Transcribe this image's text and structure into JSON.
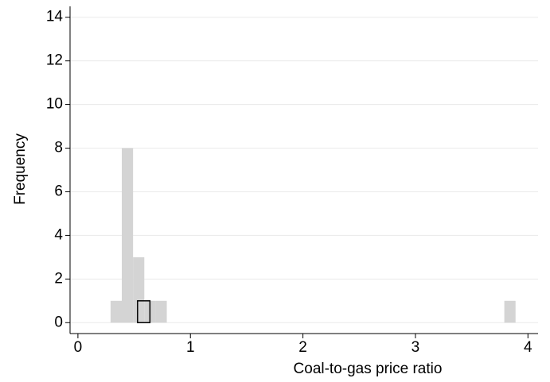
{
  "chart_data": {
    "type": "histogram",
    "x_label": "Coal-to-gas price ratio",
    "y_label": "Frequency",
    "series": [
      {
        "color": "#d4d4d4",
        "bins": [
          0.29,
          0.39,
          0.49,
          0.59,
          0.69,
          0.79,
          0.89,
          0.99,
          1.09,
          1.19,
          1.29,
          1.39,
          1.49,
          1.59,
          1.69,
          1.79,
          1.89,
          1.99,
          2.09,
          2.19,
          2.29,
          2.39,
          2.49,
          2.59,
          2.69,
          2.79,
          2.89,
          2.99,
          3.09,
          3.19,
          3.29,
          3.39,
          3.49,
          3.59,
          3.69,
          3.79,
          3.89
        ],
        "values": [
          1,
          8,
          3,
          1,
          1,
          0,
          0,
          0,
          0,
          0,
          0,
          0,
          0,
          0,
          0,
          0,
          0,
          0,
          0,
          0,
          0,
          0,
          0,
          0,
          0,
          0,
          0,
          0,
          0,
          0,
          0,
          0,
          0,
          0,
          0,
          1
        ]
      },
      {
        "color": "none",
        "edgecolor": "#000000",
        "bins": [
          0.53,
          0.64
        ],
        "values": [
          1
        ]
      }
    ],
    "xlim": [
      -0.07,
      4.09
    ],
    "ylim": [
      -0.5,
      14.5
    ],
    "xticks": [
      0,
      1,
      2,
      3,
      4
    ],
    "yticks": [
      0,
      2,
      4,
      6,
      8,
      10,
      12,
      14
    ],
    "grid": true
  }
}
